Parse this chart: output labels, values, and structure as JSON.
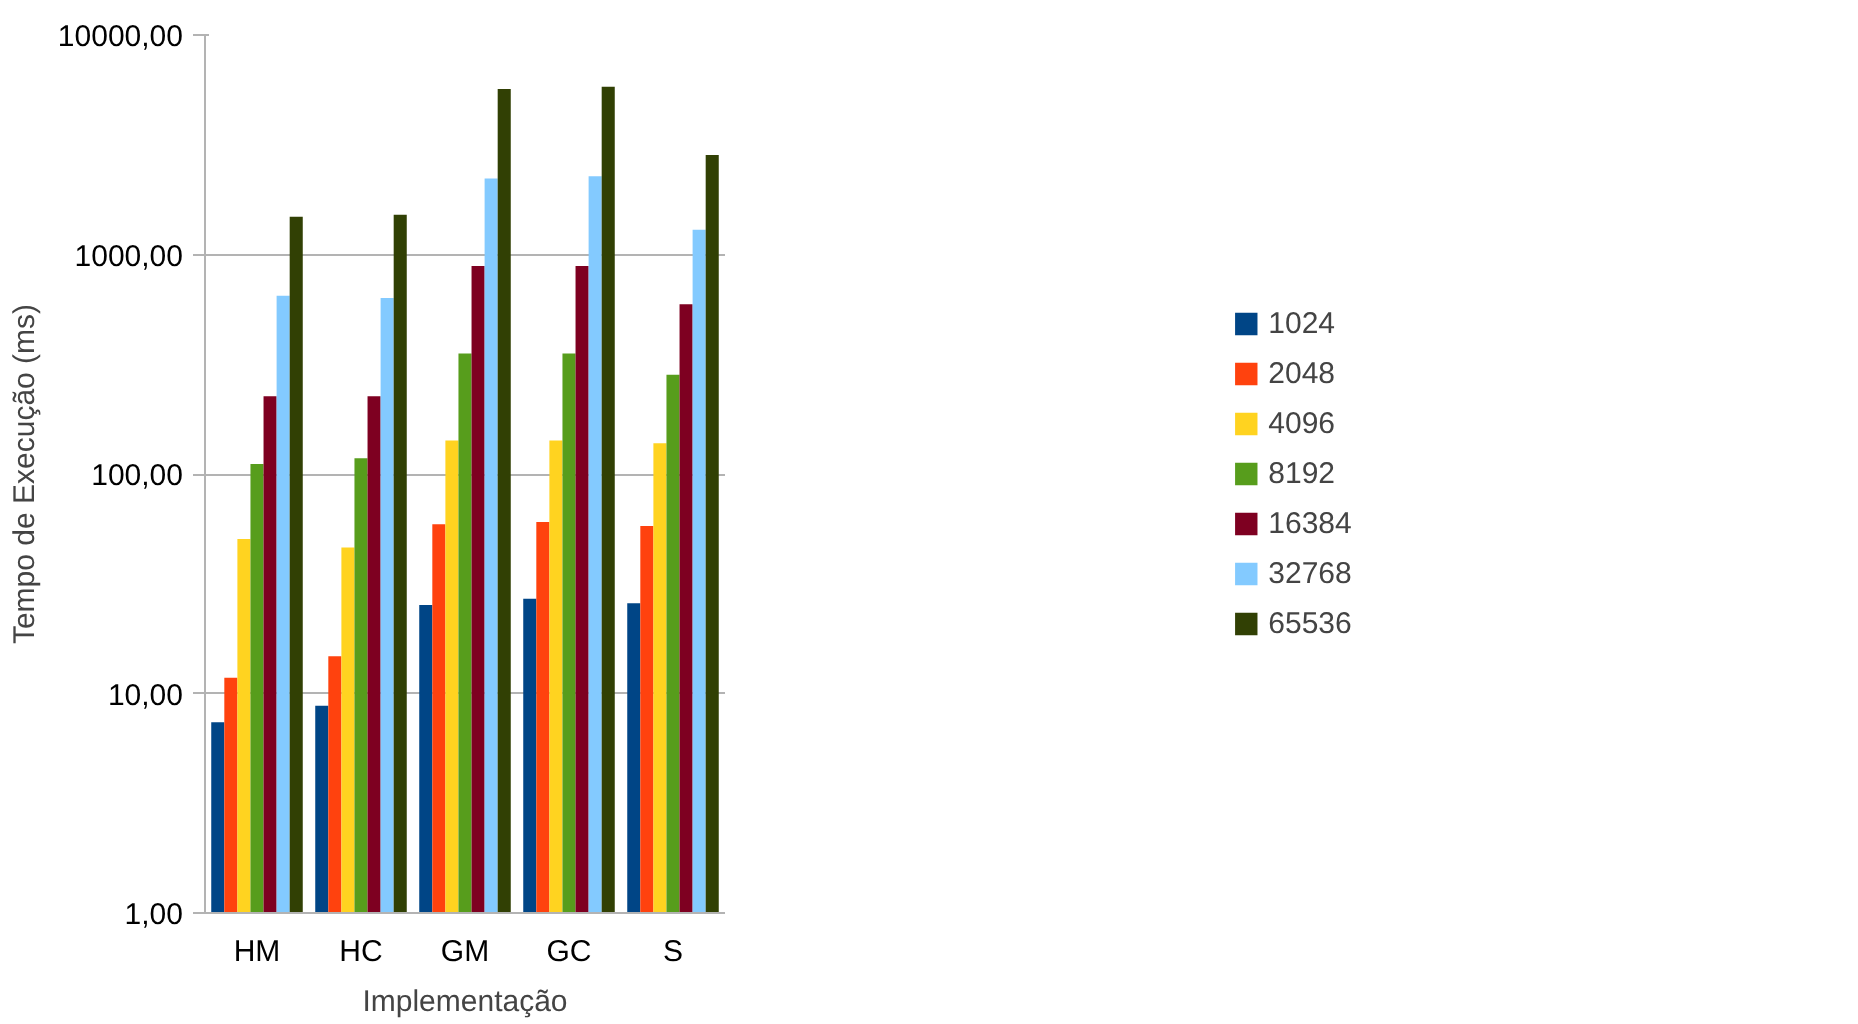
{
  "chart_data": {
    "type": "bar",
    "xlabel": "Implementação",
    "ylabel": "Tempo de Execução (ms)",
    "categories": [
      "HM",
      "HC",
      "GM",
      "GC",
      "S"
    ],
    "series": [
      {
        "name": "1024",
        "color": "#004586",
        "values": [
          7.4,
          8.8,
          25.3,
          27,
          25.8
        ]
      },
      {
        "name": "2048",
        "color": "#ff420e",
        "values": [
          11.8,
          14.8,
          59,
          60.5,
          58
        ]
      },
      {
        "name": "4096",
        "color": "#ffd320",
        "values": [
          50.6,
          46.2,
          142,
          142,
          138
        ]
      },
      {
        "name": "8192",
        "color": "#579d1c",
        "values": [
          111,
          118,
          354,
          354,
          283
        ]
      },
      {
        "name": "16384",
        "color": "#7e0021",
        "values": [
          226,
          226,
          887,
          887,
          593
        ]
      },
      {
        "name": "32768",
        "color": "#83caff",
        "values": [
          649,
          634,
          2220,
          2270,
          1298
        ]
      },
      {
        "name": "65536",
        "color": "#314004",
        "values": [
          1484,
          1518,
          5680,
          5810,
          2840
        ]
      }
    ],
    "log": "y",
    "ylim": [
      1,
      10000
    ],
    "yticks": [
      {
        "value": 1,
        "label": "1,00"
      },
      {
        "value": 10,
        "label": "10,00"
      },
      {
        "value": 100,
        "label": "100,00"
      },
      {
        "value": 1000,
        "label": "1000,00"
      },
      {
        "value": 10000,
        "label": "10000,00"
      }
    ],
    "grid": "y",
    "legend": "right"
  }
}
